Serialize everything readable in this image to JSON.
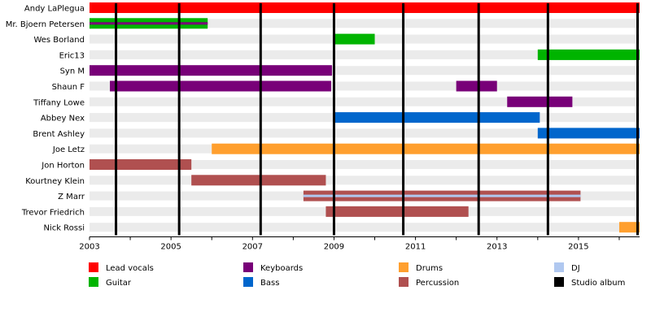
{
  "chart_data": {
    "type": "bar",
    "subtype": "band-member-timeline",
    "title": "",
    "xlabel": "",
    "ylabel": "",
    "xlim": [
      2003,
      2016.5
    ],
    "x_ticks": [
      "2003",
      "2005",
      "2007",
      "2009",
      "2011",
      "2013",
      "2015"
    ],
    "grid": true,
    "legend_position": "bottom",
    "colors": {
      "Lead vocals": "#ff0000",
      "Guitar": "#00b400",
      "Keyboards": "#780078",
      "Bass": "#0066cc",
      "Drums": "#ff9f2e",
      "Percussion": "#b05050",
      "DJ": "#b0c8f0",
      "Studio album": "#000000"
    },
    "legend": [
      "Lead vocals",
      "Guitar",
      "Keyboards",
      "Bass",
      "Drums",
      "Percussion",
      "DJ",
      "Studio album"
    ],
    "members": [
      {
        "name": "Andy LaPlegua",
        "bars": [
          {
            "role": "Lead vocals",
            "start": 2003.0,
            "end": 2016.5
          }
        ]
      },
      {
        "name": "Mr. Bjoern Petersen",
        "bars": [
          {
            "role": "Guitar",
            "start": 2003.0,
            "end": 2005.9
          },
          {
            "role": "Keyboards",
            "start": 2003.0,
            "end": 2005.9,
            "stripe": true
          }
        ]
      },
      {
        "name": "Wes Borland",
        "bars": [
          {
            "role": "Guitar",
            "start": 2009.0,
            "end": 2010.0
          }
        ]
      },
      {
        "name": "Eric13",
        "bars": [
          {
            "role": "Guitar",
            "start": 2014.0,
            "end": 2016.5
          }
        ]
      },
      {
        "name": "Syn M",
        "bars": [
          {
            "role": "Keyboards",
            "start": 2003.0,
            "end": 2008.95
          }
        ]
      },
      {
        "name": "Shaun F",
        "bars": [
          {
            "role": "Keyboards",
            "start": 2003.5,
            "end": 2008.93
          },
          {
            "role": "Keyboards",
            "start": 2012.0,
            "end": 2013.0
          }
        ]
      },
      {
        "name": "Tiffany Lowe",
        "bars": [
          {
            "role": "Keyboards",
            "start": 2013.25,
            "end": 2014.85
          }
        ]
      },
      {
        "name": "Abbey Nex",
        "bars": [
          {
            "role": "Bass",
            "start": 2009.0,
            "end": 2014.05
          }
        ]
      },
      {
        "name": "Brent Ashley",
        "bars": [
          {
            "role": "Bass",
            "start": 2014.0,
            "end": 2016.5
          }
        ]
      },
      {
        "name": "Joe Letz",
        "bars": [
          {
            "role": "Drums",
            "start": 2006.0,
            "end": 2016.5
          }
        ]
      },
      {
        "name": "Jon Horton",
        "bars": [
          {
            "role": "Percussion",
            "start": 2003.0,
            "end": 2005.5
          }
        ]
      },
      {
        "name": "Kourtney Klein",
        "bars": [
          {
            "role": "Percussion",
            "start": 2005.5,
            "end": 2008.8
          }
        ]
      },
      {
        "name": "Z Marr",
        "bars": [
          {
            "role": "Percussion",
            "start": 2008.25,
            "end": 2015.05
          },
          {
            "role": "DJ",
            "start": 2008.25,
            "end": 2015.05,
            "stripe": true
          }
        ]
      },
      {
        "name": "Trevor Friedrich",
        "bars": [
          {
            "role": "Percussion",
            "start": 2008.8,
            "end": 2012.3
          }
        ]
      },
      {
        "name": "Nick Rossi",
        "bars": [
          {
            "role": "Drums",
            "start": 2016.0,
            "end": 2016.5
          }
        ]
      }
    ],
    "studio_albums": [
      2003.65,
      2005.2,
      2007.2,
      2009.0,
      2010.7,
      2012.55,
      2014.25,
      2016.45
    ]
  }
}
